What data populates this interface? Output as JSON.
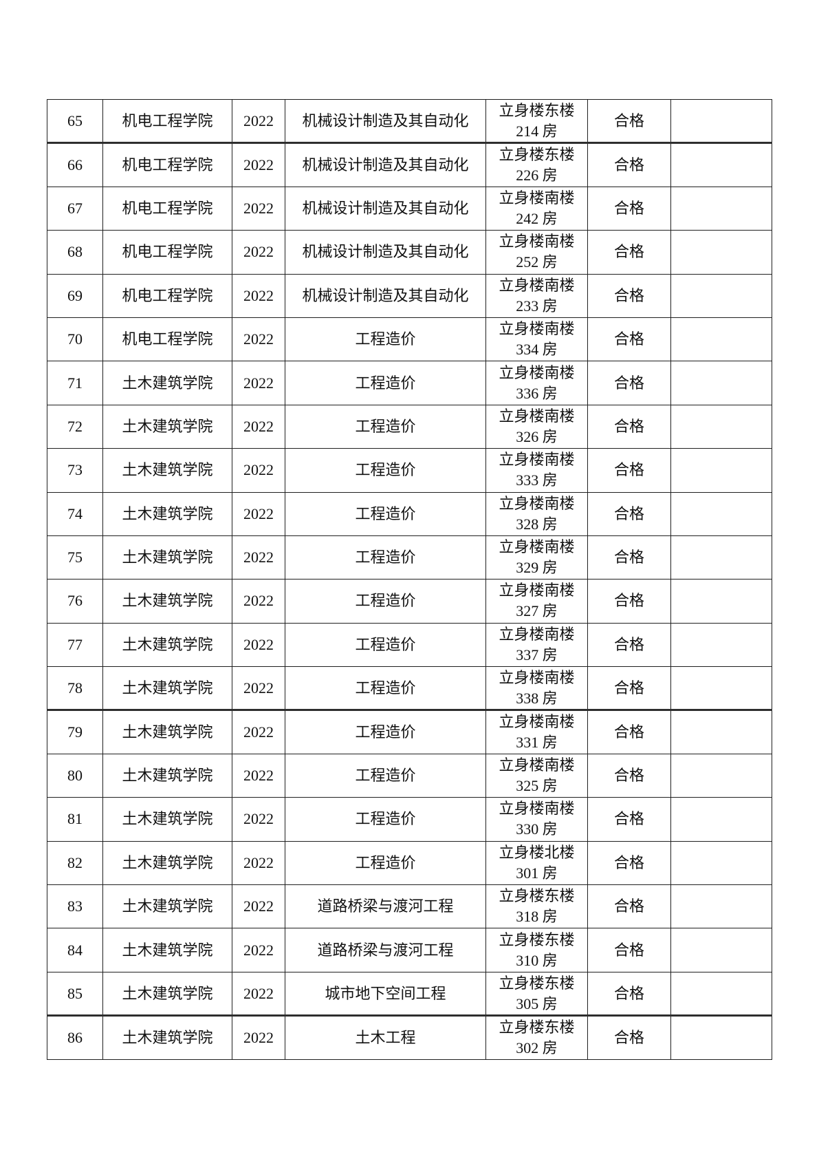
{
  "table": {
    "border_color": "#1f1f1f",
    "text_color": "#111111",
    "status_pass_label": "合格",
    "rows": [
      {
        "no": "65",
        "college": "机电工程学院",
        "year": "2022",
        "major": "机械设计制造及其自动化",
        "location_line1": "立身楼东楼",
        "location_line2": "214 房",
        "result": "合格",
        "note": ""
      },
      {
        "no": "66",
        "college": "机电工程学院",
        "year": "2022",
        "major": "机械设计制造及其自动化",
        "location_line1": "立身楼东楼",
        "location_line2": "226 房",
        "result": "合格",
        "note": ""
      },
      {
        "no": "67",
        "college": "机电工程学院",
        "year": "2022",
        "major": "机械设计制造及其自动化",
        "location_line1": "立身楼南楼",
        "location_line2": "242 房",
        "result": "合格",
        "note": ""
      },
      {
        "no": "68",
        "college": "机电工程学院",
        "year": "2022",
        "major": "机械设计制造及其自动化",
        "location_line1": "立身楼南楼",
        "location_line2": "252 房",
        "result": "合格",
        "note": ""
      },
      {
        "no": "69",
        "college": "机电工程学院",
        "year": "2022",
        "major": "机械设计制造及其自动化",
        "location_line1": "立身楼南楼",
        "location_line2": "233 房",
        "result": "合格",
        "note": ""
      },
      {
        "no": "70",
        "college": "机电工程学院",
        "year": "2022",
        "major": "工程造价",
        "location_line1": "立身楼南楼",
        "location_line2": "334 房",
        "result": "合格",
        "note": ""
      },
      {
        "no": "71",
        "college": "土木建筑学院",
        "year": "2022",
        "major": "工程造价",
        "location_line1": "立身楼南楼",
        "location_line2": "336 房",
        "result": "合格",
        "note": ""
      },
      {
        "no": "72",
        "college": "土木建筑学院",
        "year": "2022",
        "major": "工程造价",
        "location_line1": "立身楼南楼",
        "location_line2": "326 房",
        "result": "合格",
        "note": ""
      },
      {
        "no": "73",
        "college": "土木建筑学院",
        "year": "2022",
        "major": "工程造价",
        "location_line1": "立身楼南楼",
        "location_line2": "333 房",
        "result": "合格",
        "note": ""
      },
      {
        "no": "74",
        "college": "土木建筑学院",
        "year": "2022",
        "major": "工程造价",
        "location_line1": "立身楼南楼",
        "location_line2": "328 房",
        "result": "合格",
        "note": ""
      },
      {
        "no": "75",
        "college": "土木建筑学院",
        "year": "2022",
        "major": "工程造价",
        "location_line1": "立身楼南楼",
        "location_line2": "329 房",
        "result": "合格",
        "note": ""
      },
      {
        "no": "76",
        "college": "土木建筑学院",
        "year": "2022",
        "major": "工程造价",
        "location_line1": "立身楼南楼",
        "location_line2": "327 房",
        "result": "合格",
        "note": ""
      },
      {
        "no": "77",
        "college": "土木建筑学院",
        "year": "2022",
        "major": "工程造价",
        "location_line1": "立身楼南楼",
        "location_line2": "337 房",
        "result": "合格",
        "note": ""
      },
      {
        "no": "78",
        "college": "土木建筑学院",
        "year": "2022",
        "major": "工程造价",
        "location_line1": "立身楼南楼",
        "location_line2": "338 房",
        "result": "合格",
        "note": ""
      },
      {
        "no": "79",
        "college": "土木建筑学院",
        "year": "2022",
        "major": "工程造价",
        "location_line1": "立身楼南楼",
        "location_line2": "331 房",
        "result": "合格",
        "note": ""
      },
      {
        "no": "80",
        "college": "土木建筑学院",
        "year": "2022",
        "major": "工程造价",
        "location_line1": "立身楼南楼",
        "location_line2": "325 房",
        "result": "合格",
        "note": ""
      },
      {
        "no": "81",
        "college": "土木建筑学院",
        "year": "2022",
        "major": "工程造价",
        "location_line1": "立身楼南楼",
        "location_line2": "330 房",
        "result": "合格",
        "note": ""
      },
      {
        "no": "82",
        "college": "土木建筑学院",
        "year": "2022",
        "major": "工程造价",
        "location_line1": "立身楼北楼",
        "location_line2": "301 房",
        "result": "合格",
        "note": ""
      },
      {
        "no": "83",
        "college": "土木建筑学院",
        "year": "2022",
        "major": "道路桥梁与渡河工程",
        "location_line1": "立身楼东楼",
        "location_line2": "318 房",
        "result": "合格",
        "note": ""
      },
      {
        "no": "84",
        "college": "土木建筑学院",
        "year": "2022",
        "major": "道路桥梁与渡河工程",
        "location_line1": "立身楼东楼",
        "location_line2": "310 房",
        "result": "合格",
        "note": ""
      },
      {
        "no": "85",
        "college": "土木建筑学院",
        "year": "2022",
        "major": "城市地下空间工程",
        "location_line1": "立身楼东楼",
        "location_line2": "305 房",
        "result": "合格",
        "note": ""
      },
      {
        "no": "86",
        "college": "土木建筑学院",
        "year": "2022",
        "major": "土木工程",
        "location_line1": "立身楼东楼",
        "location_line2": "302 房",
        "result": "合格",
        "note": ""
      }
    ],
    "thick_border_after_rows": [
      "65",
      "78",
      "85"
    ]
  }
}
